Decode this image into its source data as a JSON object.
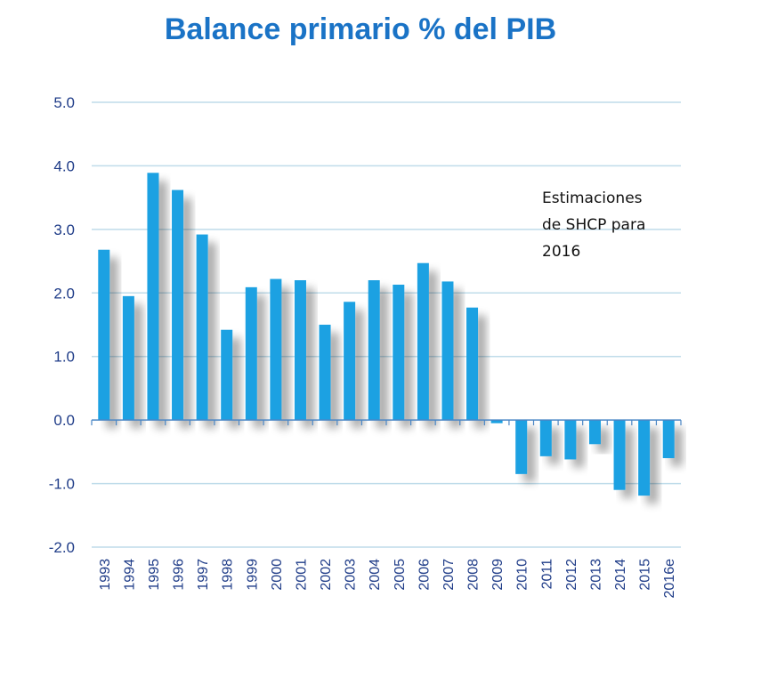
{
  "chart_data": {
    "type": "bar",
    "title": "Balance primario % del PIB",
    "xlabel": "",
    "ylabel": "",
    "ylim": [
      -2.0,
      5.0
    ],
    "yticks": [
      "5.0",
      "4.0",
      "3.0",
      "2.0",
      "1.0",
      "0.0",
      "-1.0",
      "-2.0"
    ],
    "categories": [
      "1993",
      "1994",
      "1995",
      "1996",
      "1997",
      "1998",
      "1999",
      "2000",
      "2001",
      "2002",
      "2003",
      "2004",
      "2005",
      "2006",
      "2007",
      "2008",
      "2009",
      "2010",
      "2011",
      "2012",
      "2013",
      "2014",
      "2015",
      "2016e"
    ],
    "values": [
      2.68,
      1.95,
      3.89,
      3.62,
      2.92,
      1.42,
      2.09,
      2.22,
      2.2,
      1.5,
      1.86,
      2.2,
      2.13,
      2.47,
      2.18,
      1.77,
      -0.05,
      -0.85,
      -0.57,
      -0.62,
      -0.38,
      -1.1,
      -1.19,
      -0.6
    ],
    "bar_color": "#1ba1e2",
    "grid": true,
    "annotation": [
      "Estimaciones",
      "de SHCP para",
      "2016"
    ]
  }
}
